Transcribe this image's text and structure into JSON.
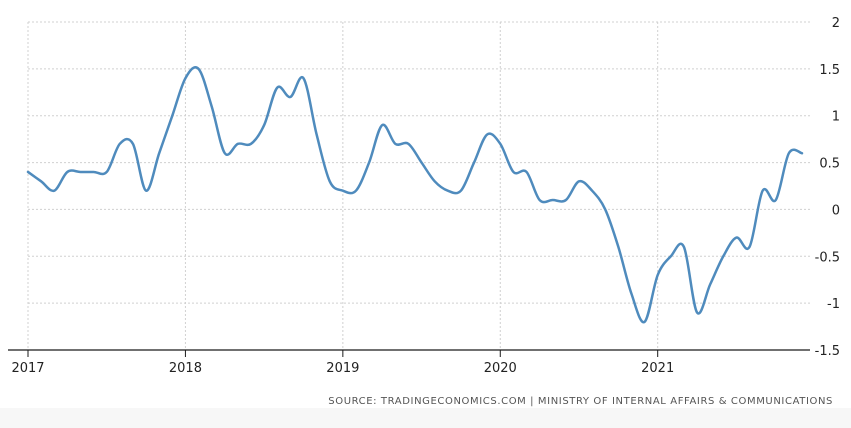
{
  "source_text": "SOURCE: TRADINGECONOMICS.COM | MINISTRY OF INTERNAL AFFAIRS & COMMUNICATIONS",
  "colors": {
    "line": "#4f8bbd",
    "grid": "#d0d0d0",
    "axis": "#1a1a1a",
    "text": "#222222"
  },
  "chart_data": {
    "type": "line",
    "title": "",
    "xlabel": "",
    "ylabel": "",
    "grid": true,
    "ylim": [
      -1.5,
      2
    ],
    "xlim": [
      "2017-01",
      "2021-12"
    ],
    "yticks": [
      2,
      1.5,
      1,
      0.5,
      0,
      -0.5,
      -1,
      -1.5
    ],
    "ytick_labels": [
      "2",
      "1.5",
      "1",
      "0.5",
      "0",
      "-0.5",
      "-1",
      "-1.5"
    ],
    "xticks": [
      "2017-01",
      "2018-01",
      "2019-01",
      "2020-01",
      "2021-01"
    ],
    "xtick_labels": [
      "2017",
      "2018",
      "2019",
      "2020",
      "2021"
    ],
    "series": [
      {
        "x": [
          "2017-01",
          "2017-02",
          "2017-03",
          "2017-04",
          "2017-05",
          "2017-06",
          "2017-07",
          "2017-08",
          "2017-09",
          "2017-10",
          "2017-11",
          "2017-12",
          "2018-01",
          "2018-02",
          "2018-03",
          "2018-04",
          "2018-05",
          "2018-06",
          "2018-07",
          "2018-08",
          "2018-09",
          "2018-10",
          "2018-11",
          "2018-12",
          "2019-01",
          "2019-02",
          "2019-03",
          "2019-04",
          "2019-05",
          "2019-06",
          "2019-07",
          "2019-08",
          "2019-09",
          "2019-10",
          "2019-11",
          "2019-12",
          "2020-01",
          "2020-02",
          "2020-03",
          "2020-04",
          "2020-05",
          "2020-06",
          "2020-07",
          "2020-08",
          "2020-09",
          "2020-10",
          "2020-11",
          "2020-12",
          "2021-01",
          "2021-02",
          "2021-03",
          "2021-04",
          "2021-05",
          "2021-06",
          "2021-07",
          "2021-08",
          "2021-09",
          "2021-10",
          "2021-11",
          "2021-12"
        ],
        "y": [
          0.4,
          0.3,
          0.2,
          0.4,
          0.4,
          0.4,
          0.4,
          0.7,
          0.7,
          0.2,
          0.6,
          1.0,
          1.4,
          1.5,
          1.1,
          0.6,
          0.7,
          0.7,
          0.9,
          1.3,
          1.2,
          1.4,
          0.8,
          0.3,
          0.2,
          0.2,
          0.5,
          0.9,
          0.7,
          0.7,
          0.5,
          0.3,
          0.2,
          0.2,
          0.5,
          0.8,
          0.7,
          0.4,
          0.4,
          0.1,
          0.1,
          0.1,
          0.3,
          0.2,
          0.0,
          -0.4,
          -0.9,
          -1.2,
          -0.7,
          -0.5,
          -0.4,
          -1.1,
          -0.8,
          -0.5,
          -0.3,
          -0.4,
          0.2,
          0.1,
          0.6,
          0.6
        ]
      }
    ]
  }
}
